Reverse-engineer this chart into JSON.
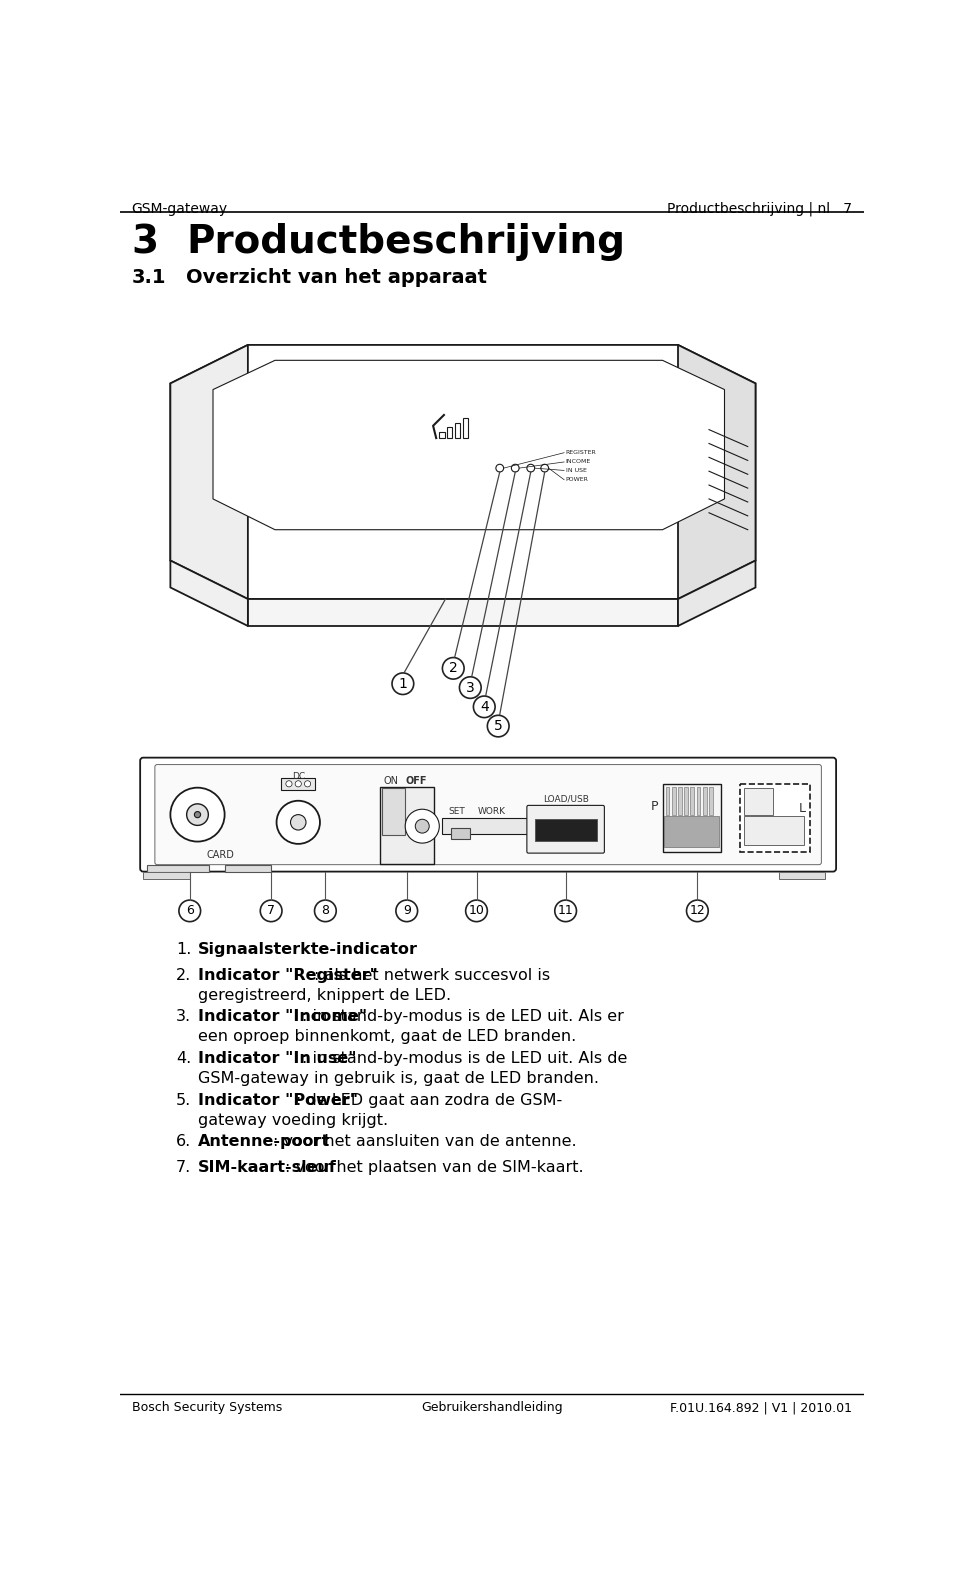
{
  "header_left": "GSM-gateway",
  "header_center": "Productbeschrijving | nl",
  "header_page": "7",
  "section_number": "3",
  "section_title": "Productbeschrijving",
  "subsection_number": "3.1",
  "subsection_title": "Overzicht van het apparaat",
  "footer_left": "Bosch Security Systems",
  "footer_center": "Gebruikershandleiding",
  "footer_right": "F.01U.164.892 | V1 | 2010.01",
  "list_items": [
    {
      "number": "1.",
      "bold": "Signaalsterkte-indicator",
      "rest": ""
    },
    {
      "number": "2.",
      "bold": "Indicator \"Register\"",
      "rest": ": als het netwerk succesvol is\ngeregistreerd, knippert de LED."
    },
    {
      "number": "3.",
      "bold": "Indicator \"Income\"",
      "rest": ": in stand-by-modus is de LED uit. Als er\neen oproep binnenkomt, gaat de LED branden."
    },
    {
      "number": "4.",
      "bold": "Indicator \"In use\"",
      "rest": ": in stand-by-modus is de LED uit. Als de\nGSM-gateway in gebruik is, gaat de LED branden."
    },
    {
      "number": "5.",
      "bold": "Indicator \"Power\"",
      "rest": ": de LED gaat aan zodra de GSM-\ngateway voeding krijgt."
    },
    {
      "number": "6.",
      "bold": "Antenne-poort",
      "rest": ": voor het aansluiten van de antenne."
    },
    {
      "number": "7.",
      "bold": "SIM-kaart-sleuf",
      "rest": ": voor het plaatsen van de SIM-kaart."
    }
  ],
  "bg_color": "#ffffff",
  "text_color": "#000000",
  "line_color": "#000000",
  "device_edge": "#1a1a1a",
  "device_face": "#f5f5f5"
}
